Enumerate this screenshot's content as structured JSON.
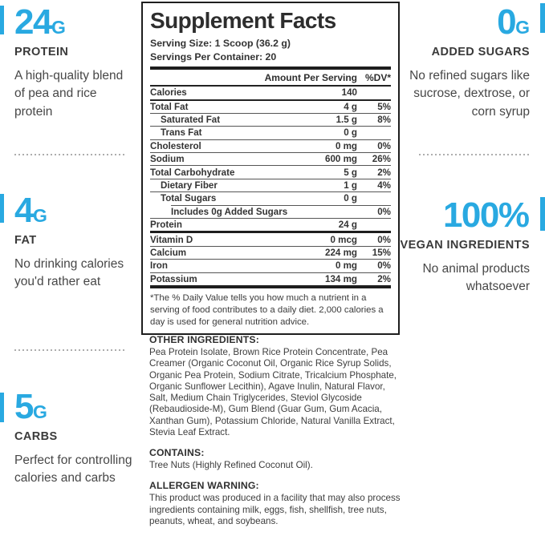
{
  "colors": {
    "accent_blue": "#29A9E1",
    "text_dark": "#3a3a3a",
    "panel_border": "#1e1e1e"
  },
  "left_column": {
    "stats": [
      {
        "value": "24",
        "unit": "G",
        "label": "PROTEIN",
        "description": "A high-quality blend of pea and rice protein"
      },
      {
        "value": "4",
        "unit": "G",
        "label": "FAT",
        "description": "No drinking calories you'd rather eat"
      },
      {
        "value": "5",
        "unit": "G",
        "label": "CARBS",
        "description": "Perfect for controlling calories and carbs"
      }
    ]
  },
  "right_column": {
    "stats": [
      {
        "value": "0",
        "unit": "G",
        "label": "ADDED SUGARS",
        "description": "No refined sugars like sucrose, dextrose, or corn syrup"
      },
      {
        "value": "100",
        "unit": "%",
        "label": "VEGAN INGREDIENTS",
        "description": "No animal products whatsoever"
      }
    ]
  },
  "panel": {
    "title": "Supplement Facts",
    "serving_size": "Serving Size: 1 Scoop (36.2 g)",
    "servings_per_container": "Servings Per Container: 20",
    "header": {
      "amount": "Amount Per Serving",
      "dv": "%DV*"
    },
    "rows": [
      {
        "name": "Calories",
        "amount": "140",
        "dv": "",
        "indent": 0,
        "divider": "medium",
        "divider_indent": 0
      },
      {
        "name": "Total Fat",
        "amount": "4 g",
        "dv": "5%",
        "indent": 0,
        "divider": "thin",
        "divider_indent": 0
      },
      {
        "name": "Saturated Fat",
        "amount": "1.5 g",
        "dv": "8%",
        "indent": 1,
        "divider": "thin",
        "divider_indent": 0
      },
      {
        "name": "Trans Fat",
        "amount": "0 g",
        "dv": "",
        "indent": 1,
        "divider": "thin",
        "divider_indent": 0
      },
      {
        "name": "Cholesterol",
        "amount": "0 mg",
        "dv": "0%",
        "indent": 0,
        "divider": "thin",
        "divider_indent": 0
      },
      {
        "name": "Sodium",
        "amount": "600 mg",
        "dv": "26%",
        "indent": 0,
        "divider": "thin",
        "divider_indent": 0
      },
      {
        "name": "Total Carbohydrate",
        "amount": "5 g",
        "dv": "2%",
        "indent": 0,
        "divider": "thin",
        "divider_indent": 0
      },
      {
        "name": "Dietary Fiber",
        "amount": "1 g",
        "dv": "4%",
        "indent": 1,
        "divider": "thin",
        "divider_indent": 0
      },
      {
        "name": "Total Sugars",
        "amount": "0 g",
        "dv": "",
        "indent": 1,
        "divider": "thin",
        "divider_indent": 26
      },
      {
        "name": "Includes 0g Added Sugars",
        "amount": "",
        "dv": "0%",
        "indent": 2,
        "divider": "thin",
        "divider_indent": 0
      },
      {
        "name": "Protein",
        "amount": "24 g",
        "dv": "",
        "indent": 0,
        "divider": "thick3",
        "divider_indent": 0
      },
      {
        "name": "Vitamin D",
        "amount": "0 mcg",
        "dv": "0%",
        "indent": 0,
        "divider": "thin",
        "divider_indent": 0
      },
      {
        "name": "Calcium",
        "amount": "224 mg",
        "dv": "15%",
        "indent": 0,
        "divider": "thin",
        "divider_indent": 0
      },
      {
        "name": "Iron",
        "amount": "0 mg",
        "dv": "0%",
        "indent": 0,
        "divider": "thin",
        "divider_indent": 0
      },
      {
        "name": "Potassium",
        "amount": "134 mg",
        "dv": "2%",
        "indent": 0,
        "divider": "thick4",
        "divider_indent": 0
      }
    ],
    "footnote": "*The % Daily Value tells you how much a nutrient in a serving of food contributes to a daily diet. 2,000 calories a day is used for general nutrition advice."
  },
  "sections": [
    {
      "heading": "OTHER INGREDIENTS:",
      "body": "Pea Protein Isolate, Brown Rice Protein Concentrate, Pea Creamer (Organic Coconut Oil, Organic Rice Syrup Solids, Organic Pea Protein, Sodium Citrate, Tricalcium Phosphate, Organic Sunflower Lecithin), Agave Inulin, Natural Flavor, Salt, Medium Chain Triglycerides, Steviol Glycoside (Rebaudioside-M), Gum Blend (Guar Gum, Gum Acacia, Xanthan Gum), Potassium Chloride, Natural Vanilla Extract, Stevia Leaf Extract."
    },
    {
      "heading": "CONTAINS:",
      "body": "Tree Nuts (Highly Refined Coconut Oil)."
    },
    {
      "heading": "ALLERGEN WARNING:",
      "body": "This product was produced in a facility that may also process ingredients containing milk, eggs, fish, shellfish, tree nuts, peanuts, wheat, and soybeans."
    }
  ]
}
